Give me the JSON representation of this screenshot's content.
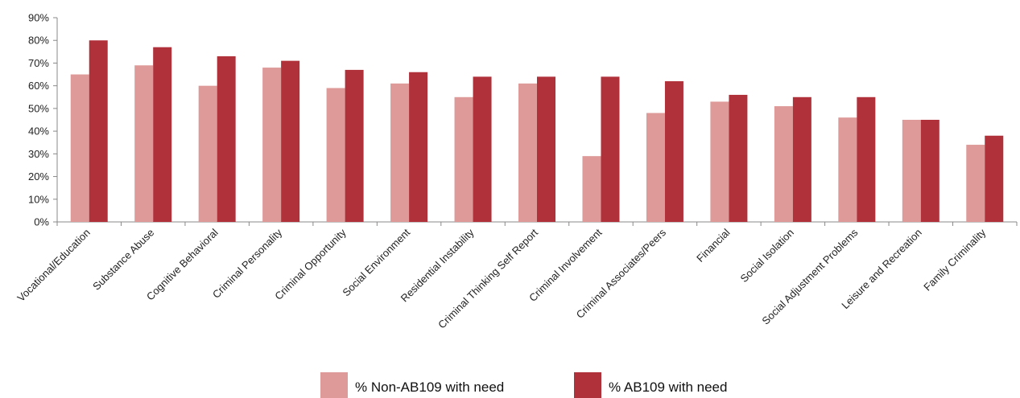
{
  "chart_data": {
    "type": "bar",
    "categories": [
      "Vocational/Education",
      "Substance Abuse",
      "Cognitive Behavioral",
      "Criminal Personality",
      "Criminal Opportunity",
      "Social Environment",
      "Residential Instability",
      "Criminal Thinking Self Report",
      "Criminal Involvement",
      "Criminal Associates/Peers",
      "Financial",
      "Social Isolation",
      "Social Adjustment Problems",
      "Leisure and Recreation",
      "Family Criminality"
    ],
    "series": [
      {
        "name": "% Non-AB109 with need",
        "color": "#dd9a98",
        "values": [
          65,
          69,
          60,
          68,
          59,
          61,
          55,
          61,
          29,
          48,
          53,
          51,
          46,
          45,
          34
        ]
      },
      {
        "name": "% AB109 with need",
        "color": "#b1313b",
        "values": [
          80,
          77,
          73,
          71,
          67,
          66,
          64,
          64,
          64,
          62,
          56,
          55,
          55,
          45,
          38
        ]
      }
    ],
    "y_ticks": [
      "0%",
      "10%",
      "20%",
      "30%",
      "40%",
      "50%",
      "60%",
      "70%",
      "80%",
      "90%"
    ],
    "ylim": [
      0,
      90
    ],
    "grid": false,
    "legend_position": "bottom",
    "axis_color": "#888888"
  }
}
